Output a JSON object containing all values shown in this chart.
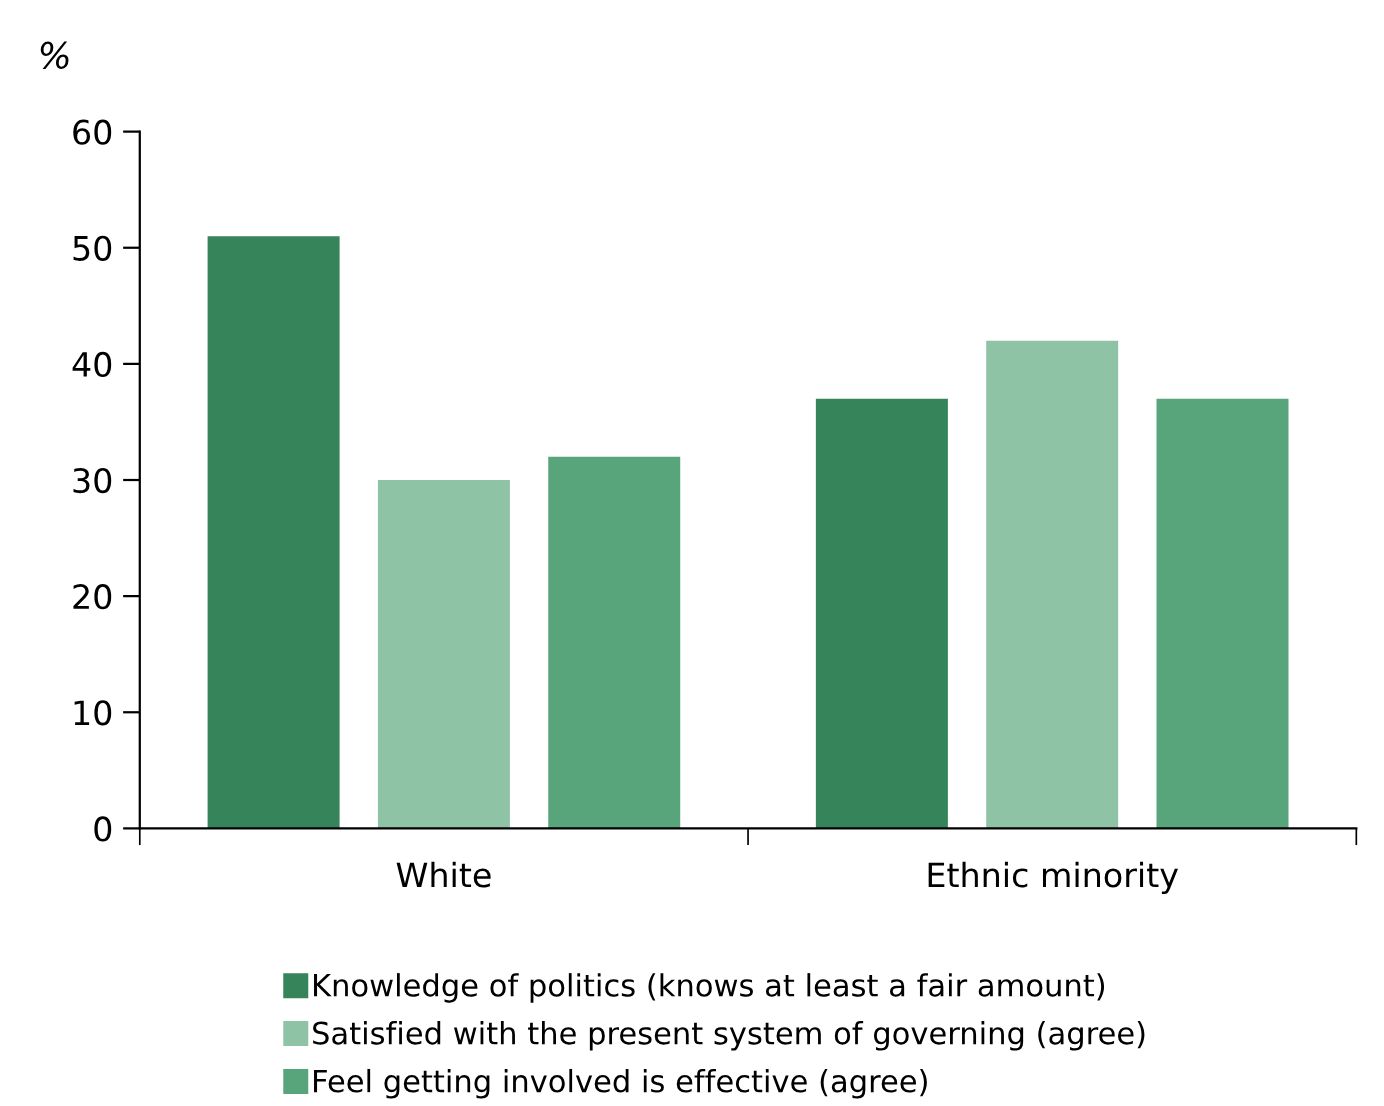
{
  "chart_data": {
    "type": "bar",
    "ylabel": "%",
    "categories": [
      "White",
      "Ethnic minority"
    ],
    "series": [
      {
        "name": "Knowledge of politics (knows at least a fair amount)",
        "color": "#35845a",
        "values": [
          51,
          37
        ]
      },
      {
        "name": "Satisfied with the present system of governing (agree)",
        "color": "#8fc3a6",
        "values": [
          30,
          42
        ]
      },
      {
        "name": "Feel getting involved is effective (agree)",
        "color": "#58a57c",
        "values": [
          32,
          37
        ]
      }
    ],
    "ylim": [
      0,
      60
    ],
    "yticks": [
      0,
      10,
      20,
      30,
      40,
      50,
      60
    ],
    "grid": false,
    "legend": "bottom"
  }
}
